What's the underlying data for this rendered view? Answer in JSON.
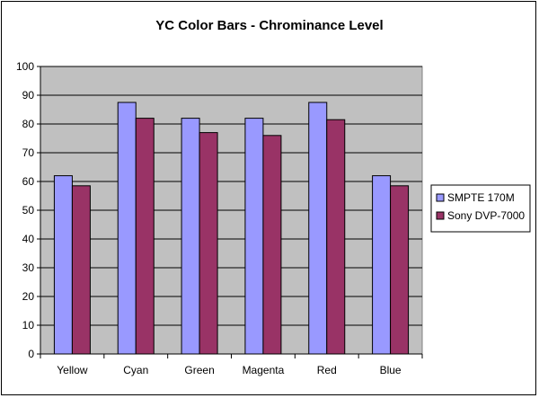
{
  "chart_data": {
    "type": "bar",
    "title": "YC Color Bars - Chrominance Level",
    "categories": [
      "Yellow",
      "Cyan",
      "Green",
      "Magenta",
      "Red",
      "Blue"
    ],
    "series": [
      {
        "name": "SMPTE 170M",
        "values": [
          62,
          87.5,
          82,
          82,
          87.5,
          62
        ],
        "color": "#9999ff"
      },
      {
        "name": "Sony DVP-7000",
        "values": [
          58.5,
          82,
          77,
          76,
          81.5,
          58.5
        ],
        "color": "#993366"
      }
    ],
    "ylim": [
      0,
      100
    ],
    "yticks": [
      "0",
      "10",
      "20",
      "30",
      "40",
      "50",
      "60",
      "70",
      "80",
      "90",
      "100"
    ],
    "grid": true,
    "plot_background": "#c0c0c0",
    "legend_position": "right"
  }
}
